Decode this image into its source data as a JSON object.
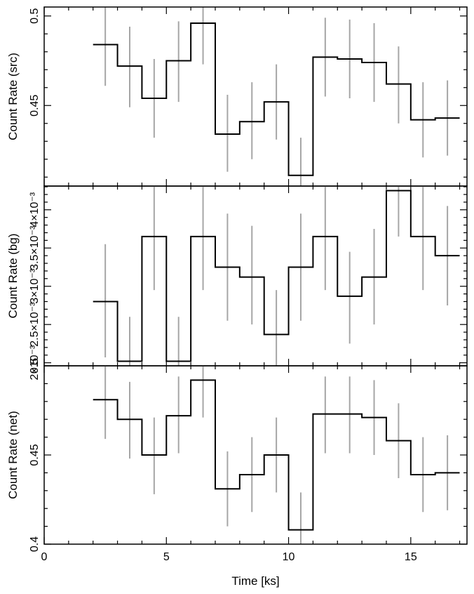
{
  "chart_data": [
    {
      "type": "line",
      "ylabel": "Count Rate (src)",
      "xlim": [
        0,
        17.3
      ],
      "ylim": [
        0.405,
        0.505
      ],
      "yticks": [
        0.45,
        0.5
      ],
      "ytick_labels": [
        "0.45",
        "0.5"
      ],
      "series": [
        {
          "bins": [
            [
              2,
              3
            ],
            [
              3,
              4
            ],
            [
              4,
              5
            ],
            [
              5,
              6
            ],
            [
              6,
              7
            ],
            [
              7,
              8
            ],
            [
              8,
              9
            ],
            [
              9,
              10
            ],
            [
              10,
              11
            ],
            [
              11,
              12
            ],
            [
              12,
              13
            ],
            [
              13,
              14
            ],
            [
              14,
              15
            ],
            [
              15,
              16
            ],
            [
              16,
              17
            ]
          ],
          "values": [
            0.484,
            0.472,
            0.454,
            0.475,
            0.496,
            0.434,
            0.441,
            0.452,
            0.411,
            0.477,
            0.476,
            0.474,
            0.462,
            0.442,
            0.443
          ],
          "err_lo": [
            0.461,
            0.449,
            0.432,
            0.452,
            0.473,
            0.413,
            0.42,
            0.431,
            0.399,
            0.455,
            0.454,
            0.452,
            0.44,
            0.421,
            0.422
          ],
          "err_hi": [
            0.505,
            0.494,
            0.476,
            0.497,
            0.505,
            0.456,
            0.463,
            0.473,
            0.432,
            0.499,
            0.498,
            0.496,
            0.483,
            0.463,
            0.464
          ]
        }
      ]
    },
    {
      "type": "line",
      "ylabel": "Count Rate (bg)",
      "xlim": [
        0,
        17.3
      ],
      "ylim": [
        0.00196,
        0.00431
      ],
      "yticks": [
        0.002,
        0.0025,
        0.003,
        0.0035,
        0.004
      ],
      "ytick_labels": [
        "2×10⁻³",
        "2.5×10⁻³",
        "3×10⁻³",
        "3.5×10⁻³",
        "4×10⁻³"
      ],
      "series": [
        {
          "bins": [
            [
              2,
              3
            ],
            [
              3,
              4
            ],
            [
              4,
              5
            ],
            [
              5,
              6
            ],
            [
              6,
              7
            ],
            [
              7,
              8
            ],
            [
              8,
              9
            ],
            [
              9,
              10
            ],
            [
              10,
              11
            ],
            [
              11,
              12
            ],
            [
              12,
              13
            ],
            [
              13,
              14
            ],
            [
              14,
              15
            ],
            [
              15,
              16
            ],
            [
              16,
              17
            ]
          ],
          "values": [
            0.0028,
            0.00202,
            0.00365,
            0.00202,
            0.00365,
            0.00325,
            0.00312,
            0.00237,
            0.00325,
            0.00365,
            0.00287,
            0.00312,
            0.00425,
            0.00365,
            0.0034
          ],
          "err_lo": [
            0.00207,
            0.0015,
            0.00295,
            0.0015,
            0.00295,
            0.00255,
            0.0025,
            0.0018,
            0.00255,
            0.00295,
            0.00225,
            0.0025,
            0.00365,
            0.00295,
            0.00275
          ],
          "err_hi": [
            0.00355,
            0.0026,
            0.00431,
            0.0026,
            0.00431,
            0.00395,
            0.00379,
            0.00295,
            0.00395,
            0.00431,
            0.00345,
            0.00375,
            0.00431,
            0.00431,
            0.00405
          ]
        }
      ]
    },
    {
      "type": "line",
      "xlabel": "Time [ks]",
      "ylabel": "Count Rate (net)",
      "xlim": [
        0,
        17.3
      ],
      "xticks": [
        0,
        5,
        10,
        15
      ],
      "xtick_labels": [
        "0",
        "5",
        "10",
        "15"
      ],
      "ylim": [
        0.4,
        0.5
      ],
      "yticks": [
        0.4,
        0.45,
        0.5
      ],
      "ytick_labels": [
        "0.4",
        "0.45",
        "0.5"
      ],
      "series": [
        {
          "bins": [
            [
              2,
              3
            ],
            [
              3,
              4
            ],
            [
              4,
              5
            ],
            [
              5,
              6
            ],
            [
              6,
              7
            ],
            [
              7,
              8
            ],
            [
              8,
              9
            ],
            [
              9,
              10
            ],
            [
              10,
              11
            ],
            [
              11,
              12
            ],
            [
              12,
              13
            ],
            [
              13,
              14
            ],
            [
              14,
              15
            ],
            [
              15,
              16
            ],
            [
              16,
              17
            ]
          ],
          "values": [
            0.481,
            0.47,
            0.45,
            0.472,
            0.492,
            0.431,
            0.439,
            0.45,
            0.408,
            0.473,
            0.473,
            0.471,
            0.458,
            0.439,
            0.44
          ],
          "err_lo": [
            0.459,
            0.448,
            0.428,
            0.451,
            0.471,
            0.41,
            0.418,
            0.429,
            0.4,
            0.451,
            0.451,
            0.45,
            0.437,
            0.418,
            0.419
          ],
          "err_hi": [
            0.5,
            0.491,
            0.471,
            0.494,
            0.5,
            0.452,
            0.46,
            0.471,
            0.429,
            0.494,
            0.494,
            0.492,
            0.479,
            0.46,
            0.461
          ]
        }
      ]
    }
  ]
}
